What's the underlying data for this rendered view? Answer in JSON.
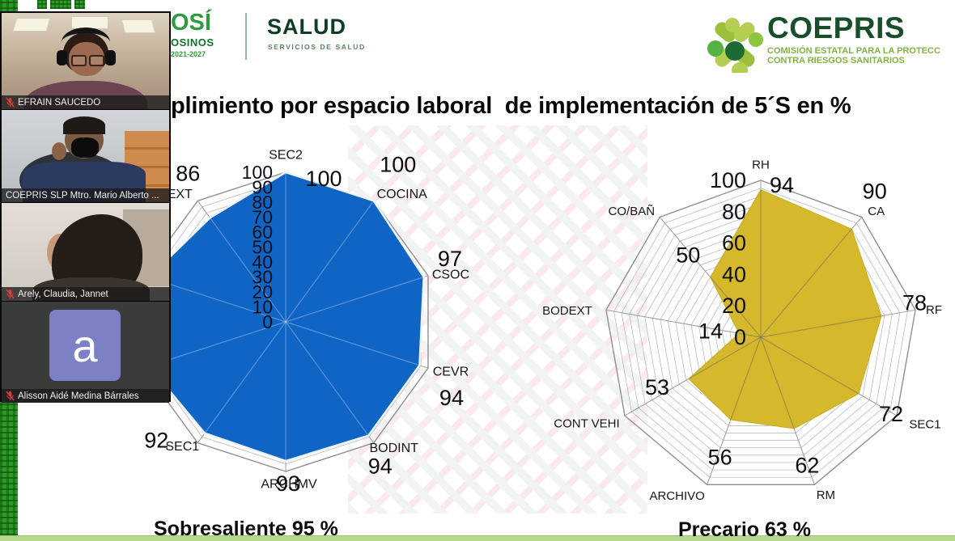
{
  "meeting_panel": {
    "participants": [
      {
        "name": "EFRAIN SAUCEDO",
        "muted": true,
        "kind": "video"
      },
      {
        "name": "COEPRIS SLP Mtro. Mario Alberto ...",
        "muted": false,
        "kind": "video"
      },
      {
        "name": "Arely, Claudia, Jannet",
        "muted": true,
        "kind": "video"
      },
      {
        "name": "Alisson Aidé Medina Bárrales",
        "muted": true,
        "kind": "avatar",
        "avatar_letter": "a"
      }
    ]
  },
  "header": {
    "slp_logo": {
      "line1": "OSÍ",
      "line2": "OSINOS",
      "line3": "2021-2027"
    },
    "salud_logo": {
      "title": "SALUD",
      "subtitle": "SERVICIOS DE SALUD"
    },
    "coepris_logo": {
      "title": "COEPRIS",
      "tagline1": "COMISIÓN ESTATAL PARA LA PROTECC",
      "tagline2": "CONTRA RIESGOS SANITARIOS"
    }
  },
  "slide": {
    "title": "plimiento por espacio laboral  de implementación de 5´S en %"
  },
  "chart_data": [
    {
      "type": "radar",
      "caption": "Sobresaliente 95 %",
      "fill_color": "#1065C4",
      "max": 100,
      "tick_step": 10,
      "ticks": [
        0,
        10,
        20,
        30,
        40,
        50,
        60,
        70,
        80,
        90,
        100
      ],
      "axes": [
        {
          "label": "SEC2",
          "value": 100,
          "angle_deg": 0
        },
        {
          "label": "COCINA",
          "value": 100,
          "angle_deg": 36
        },
        {
          "label": "CSOC",
          "value": 97,
          "angle_deg": 72
        },
        {
          "label": "CEVR",
          "value": 94,
          "angle_deg": 108
        },
        {
          "label": "BODINT",
          "value": 94,
          "angle_deg": 144
        },
        {
          "label": "ARCHMV",
          "value": 93,
          "angle_deg": 180
        },
        {
          "label": "SEC1",
          "value": 92,
          "angle_deg": 216
        },
        {
          "label": "EXT",
          "value": 86,
          "angle_deg": 324
        }
      ],
      "note": "two axes (252°, 288°) hidden behind the video-call panel"
    },
    {
      "type": "radar",
      "caption": "Precario 63 %",
      "fill_color": "#D5B82B",
      "max": 100,
      "tick_step": 20,
      "ticks": [
        0,
        20,
        40,
        60,
        80,
        100
      ],
      "axes": [
        {
          "label": "RH",
          "value": 94,
          "angle_deg": 0
        },
        {
          "label": "CA",
          "value": 90,
          "angle_deg": 40
        },
        {
          "label": "RF",
          "value": 78,
          "angle_deg": 80
        },
        {
          "label": "SEC1",
          "value": 72,
          "angle_deg": 120
        },
        {
          "label": "RM",
          "value": 62,
          "angle_deg": 160
        },
        {
          "label": "ARCHIVO",
          "value": 56,
          "angle_deg": 200
        },
        {
          "label": "CONT VEHI",
          "value": 53,
          "angle_deg": 240
        },
        {
          "label": "BODEXT",
          "value": 14,
          "angle_deg": 280
        },
        {
          "label": "CO/BAÑ",
          "value": 50,
          "angle_deg": 320
        }
      ]
    }
  ]
}
